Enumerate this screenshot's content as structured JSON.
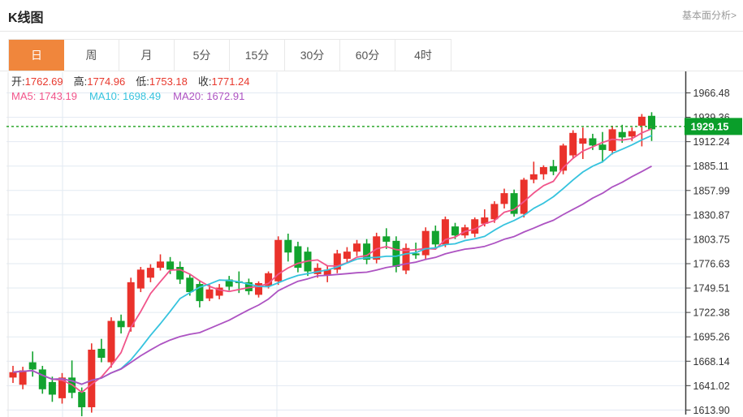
{
  "header": {
    "title": "K线图",
    "analysis_link_label": "基本面分析>"
  },
  "tabs": {
    "items": [
      "日",
      "周",
      "月",
      "5分",
      "15分",
      "30分",
      "60分",
      "4时"
    ],
    "selected_index": 0,
    "selected_bg_color": "#f0863c"
  },
  "legend": {
    "ohlc": [
      {
        "label": "开:",
        "value": "1762.69"
      },
      {
        "label": "高:",
        "value": "1774.96"
      },
      {
        "label": "低:",
        "value": "1753.18"
      },
      {
        "label": "收:",
        "value": "1771.24"
      }
    ],
    "ohlc_value_color": "#e8392e",
    "ma": [
      {
        "label": "MA5:",
        "value": "1743.19",
        "color": "#f1548a"
      },
      {
        "label": "MA10:",
        "value": "1698.49",
        "color": "#36c3de"
      },
      {
        "label": "MA20:",
        "value": "1672.91",
        "color": "#ad53c2"
      }
    ]
  },
  "chart_data": {
    "type": "candlestick",
    "title": "K线图",
    "grid": true,
    "y_axis": {
      "min": 1613.9,
      "max": 1966.48,
      "tick_step": 27.12,
      "labels": [
        "1966.48",
        "1939.36",
        "1912.24",
        "1885.11",
        "1857.99",
        "1830.87",
        "1803.75",
        "1776.63",
        "1749.51",
        "1722.38",
        "1695.26",
        "1668.14",
        "1641.02",
        "1613.90"
      ],
      "label_color": "#333333"
    },
    "current_price": {
      "value": "1929.15",
      "price": 1929.15,
      "tag_bg_color": "#0a9e2a",
      "tag_text_color": "#ffffff",
      "line_color": "#2ca62c",
      "line_style": "dotted"
    },
    "up_color": "#ea322b",
    "down_color": "#12a32e",
    "grid_color": "#e2eaf2",
    "axis_color": "#3c3c3c",
    "candles_ohlc": [
      [
        1650,
        1663,
        1644,
        1656
      ],
      [
        1642,
        1662,
        1637,
        1658
      ],
      [
        1667,
        1679,
        1651,
        1659
      ],
      [
        1659,
        1663,
        1632,
        1637
      ],
      [
        1645,
        1651,
        1623,
        1631
      ],
      [
        1627,
        1655,
        1621,
        1650
      ],
      [
        1650,
        1669,
        1627,
        1633
      ],
      [
        1634,
        1639,
        1607,
        1617
      ],
      [
        1617,
        1688,
        1611,
        1681
      ],
      [
        1682,
        1693,
        1667,
        1672
      ],
      [
        1667,
        1717,
        1661,
        1713
      ],
      [
        1713,
        1720,
        1699,
        1706
      ],
      [
        1706,
        1761,
        1701,
        1756
      ],
      [
        1749,
        1773,
        1745,
        1770
      ],
      [
        1761,
        1776,
        1756,
        1772
      ],
      [
        1772,
        1787,
        1769,
        1779
      ],
      [
        1779,
        1784,
        1765,
        1770
      ],
      [
        1773,
        1779,
        1754,
        1759
      ],
      [
        1761,
        1765,
        1741,
        1745
      ],
      [
        1754,
        1758,
        1728,
        1735
      ],
      [
        1738,
        1753,
        1735,
        1748
      ],
      [
        1741,
        1754,
        1737,
        1750
      ],
      [
        1759,
        1763,
        1747,
        1751
      ],
      [
        1757,
        1768,
        1744,
        1755
      ],
      [
        1756,
        1760,
        1742,
        1746
      ],
      [
        1742,
        1757,
        1739,
        1755
      ],
      [
        1752,
        1768,
        1749,
        1766
      ],
      [
        1757,
        1807,
        1753,
        1803
      ],
      [
        1803,
        1810,
        1779,
        1789
      ],
      [
        1796,
        1801,
        1767,
        1772
      ],
      [
        1790,
        1795,
        1763,
        1768
      ],
      [
        1765,
        1777,
        1761,
        1772
      ],
      [
        1764,
        1774,
        1756,
        1770
      ],
      [
        1770,
        1792,
        1766,
        1788
      ],
      [
        1782,
        1795,
        1778,
        1790
      ],
      [
        1790,
        1803,
        1785,
        1799
      ],
      [
        1799,
        1804,
        1776,
        1781
      ],
      [
        1781,
        1811,
        1777,
        1807
      ],
      [
        1807,
        1816,
        1793,
        1801
      ],
      [
        1802,
        1807,
        1767,
        1773
      ],
      [
        1769,
        1799,
        1765,
        1794
      ],
      [
        1788,
        1800,
        1782,
        1786
      ],
      [
        1786,
        1817,
        1782,
        1813
      ],
      [
        1813,
        1819,
        1793,
        1798
      ],
      [
        1798,
        1829,
        1795,
        1826
      ],
      [
        1818,
        1822,
        1804,
        1808
      ],
      [
        1808,
        1820,
        1805,
        1817
      ],
      [
        1810,
        1828,
        1806,
        1826
      ],
      [
        1821,
        1837,
        1818,
        1828
      ],
      [
        1826,
        1846,
        1822,
        1843
      ],
      [
        1843,
        1860,
        1838,
        1855
      ],
      [
        1855,
        1859,
        1829,
        1832
      ],
      [
        1832,
        1872,
        1828,
        1870
      ],
      [
        1870,
        1890,
        1866,
        1876
      ],
      [
        1876,
        1886,
        1870,
        1884
      ],
      [
        1885,
        1892,
        1875,
        1879
      ],
      [
        1880,
        1910,
        1876,
        1908
      ],
      [
        1897,
        1925,
        1893,
        1922
      ],
      [
        1910,
        1928,
        1893,
        1916
      ],
      [
        1916,
        1921,
        1903,
        1908
      ],
      [
        1909,
        1923,
        1889,
        1903
      ],
      [
        1902,
        1930,
        1898,
        1926
      ],
      [
        1923,
        1931,
        1911,
        1917
      ],
      [
        1918,
        1928,
        1913,
        1924
      ],
      [
        1930,
        1943,
        1907,
        1940
      ],
      [
        1941,
        1945,
        1913,
        1926
      ]
    ],
    "moving_averages": [
      {
        "name": "MA5",
        "window": 5,
        "color": "#f1548a"
      },
      {
        "name": "MA10",
        "window": 10,
        "color": "#36c3de"
      },
      {
        "name": "MA20",
        "window": 20,
        "color": "#ad53c2"
      }
    ],
    "legend_note": "red = up (Chinese convention), green = down"
  }
}
